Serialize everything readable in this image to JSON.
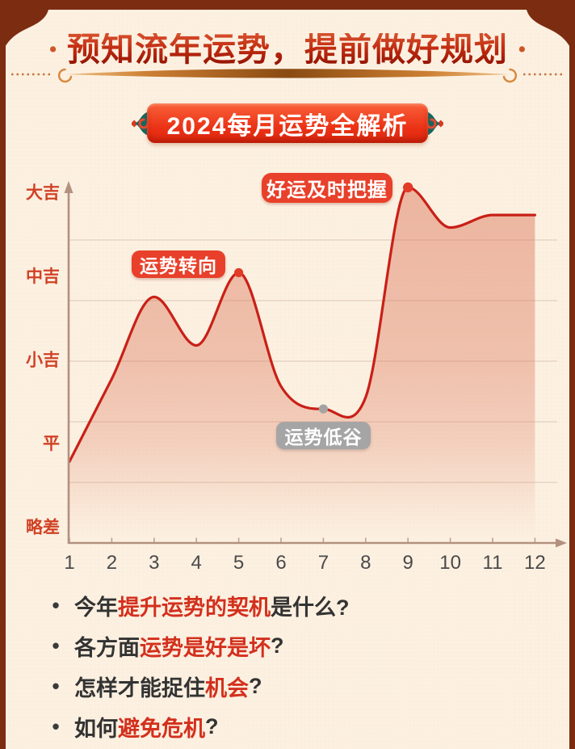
{
  "page": {
    "background_color": "#fcf0e1",
    "frame_color": "#7c2c11"
  },
  "header": {
    "side_dot": "•",
    "title": "预知流年运势，提前做好规划",
    "badge_label": "2024每月运势全解析"
  },
  "chart_data": {
    "type": "line",
    "title": "2024每月运势全解析",
    "x": [
      1,
      2,
      3,
      4,
      5,
      6,
      7,
      8,
      9,
      10,
      11,
      12
    ],
    "x_labels": [
      "1",
      "2",
      "3",
      "4",
      "5",
      "6",
      "7",
      "8",
      "9",
      "10",
      "11",
      "12"
    ],
    "y_level_labels": [
      "略差",
      "平",
      "小吉",
      "中吉",
      "大吉"
    ],
    "y_level_values": [
      1,
      2,
      3,
      4,
      5
    ],
    "values": [
      1.79,
      2.78,
      3.76,
      3.18,
      4.05,
      2.69,
      2.42,
      2.56,
      5.07,
      4.59,
      4.74,
      4.74
    ],
    "ylim": [
      0.8,
      5.3
    ],
    "grid": "horizontal",
    "legend": "none",
    "line_color": "#c92017",
    "area_color": "#dc7a5e",
    "axis_color": "#b2917f",
    "markers": [
      {
        "month": 5,
        "color": "#e23b28"
      },
      {
        "month": 7,
        "color": "#a3a3a3"
      },
      {
        "month": 9,
        "color": "#e23b28"
      }
    ],
    "annotations": [
      {
        "text": "运势转向",
        "style": "red",
        "month": 5
      },
      {
        "text": "好运及时把握",
        "style": "red",
        "month": 9
      },
      {
        "text": "运势低谷",
        "style": "gray",
        "month": 7
      }
    ]
  },
  "bullets": {
    "marker": "•",
    "items": [
      {
        "pre": "今年",
        "highlight": "提升运势的契机",
        "post": "是什么?"
      },
      {
        "pre": "各方面",
        "highlight": "运势是好是坏",
        "post": "?"
      },
      {
        "pre": "怎样才能捉住",
        "highlight": "机会",
        "post": "?"
      },
      {
        "pre": "如何",
        "highlight": "避免危机",
        "post": "?"
      }
    ]
  }
}
